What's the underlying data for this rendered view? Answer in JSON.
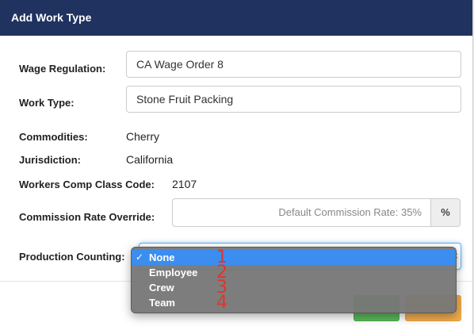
{
  "header": {
    "title": "Add Work Type"
  },
  "form": {
    "wage_regulation": {
      "label": "Wage Regulation:",
      "value": "CA Wage Order 8"
    },
    "work_type": {
      "label": "Work Type:",
      "value": "Stone Fruit Packing"
    },
    "commodities": {
      "label": "Commodities:",
      "value": "Cherry"
    },
    "jurisdiction": {
      "label": "Jurisdiction:",
      "value": "California"
    },
    "workers_comp": {
      "label": "Workers Comp Class Code:",
      "value": "2107"
    },
    "commission_rate": {
      "label": "Commission Rate Override:",
      "placeholder": "Default Commission Rate: 35%",
      "addon": "%"
    },
    "production_counting": {
      "label": "Production Counting:",
      "selected": "None",
      "options": [
        {
          "label": "None",
          "annotation": "1"
        },
        {
          "label": "Employee",
          "annotation": "2"
        },
        {
          "label": "Crew",
          "annotation": "3"
        },
        {
          "label": "Team",
          "annotation": "4"
        }
      ]
    }
  },
  "icons": {
    "check": "checkmark-icon",
    "select_arrow": "updown-chevron-icon"
  },
  "colors": {
    "header_bg": "#1f3260",
    "selected_option": "#3b8df0",
    "dropdown_bg": "#767676",
    "save_button": "#5cb85c",
    "cancel_button": "#f0ad4e",
    "annotation": "#e0352b"
  }
}
